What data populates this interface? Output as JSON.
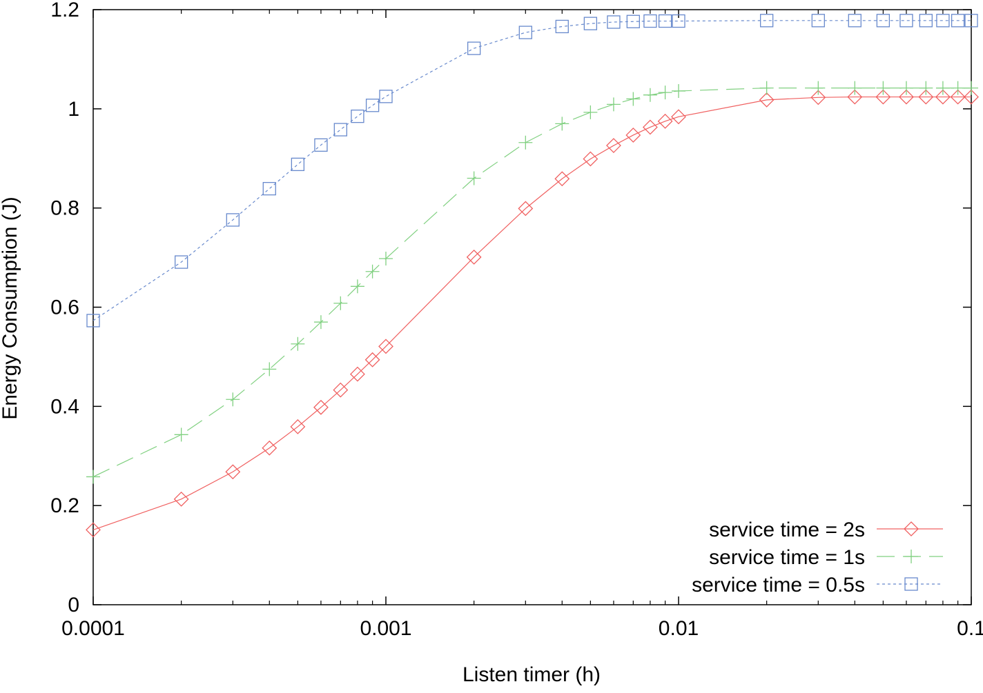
{
  "chart_data": {
    "type": "line",
    "xlabel": "Listen timer (h)",
    "ylabel": "Energy Consumption (J)",
    "xscale": "log",
    "xlim": [
      0.0001,
      0.1
    ],
    "ylim": [
      0,
      1.2
    ],
    "xticks": [
      {
        "value": 0.0001,
        "label": "0.0001"
      },
      {
        "value": 0.001,
        "label": "0.001"
      },
      {
        "value": 0.01,
        "label": "0.01"
      },
      {
        "value": 0.1,
        "label": "0.1"
      }
    ],
    "yticks": [
      {
        "value": 0,
        "label": "0"
      },
      {
        "value": 0.2,
        "label": "0.2"
      },
      {
        "value": 0.4,
        "label": "0.4"
      },
      {
        "value": 0.6,
        "label": "0.6"
      },
      {
        "value": 0.8,
        "label": "0.8"
      },
      {
        "value": 1.0,
        "label": "1"
      },
      {
        "value": 1.2,
        "label": "1.2"
      }
    ],
    "grid": false,
    "legend_position": "bottom-right",
    "x": [
      0.0001,
      0.0002,
      0.0003,
      0.0004,
      0.0005,
      0.0006,
      0.0007,
      0.0008,
      0.0009,
      0.001,
      0.002,
      0.003,
      0.004,
      0.005,
      0.006,
      0.007,
      0.008,
      0.009,
      0.01,
      0.02,
      0.03,
      0.04,
      0.05,
      0.06,
      0.07,
      0.08,
      0.09,
      0.1
    ],
    "series": [
      {
        "name": "service time = 2s",
        "color": "#f06060",
        "marker": "diamond",
        "dash": "",
        "values": [
          0.151,
          0.213,
          0.268,
          0.316,
          0.359,
          0.398,
          0.433,
          0.465,
          0.494,
          0.521,
          0.701,
          0.799,
          0.859,
          0.899,
          0.926,
          0.947,
          0.963,
          0.975,
          0.984,
          1.018,
          1.023,
          1.024,
          1.024,
          1.024,
          1.024,
          1.024,
          1.024,
          1.024
        ]
      },
      {
        "name": "service time = 1s",
        "color": "#80d080",
        "marker": "plus",
        "dash": "26,12",
        "values": [
          0.258,
          0.343,
          0.414,
          0.475,
          0.526,
          0.57,
          0.608,
          0.642,
          0.672,
          0.698,
          0.86,
          0.932,
          0.97,
          0.993,
          1.009,
          1.02,
          1.028,
          1.033,
          1.036,
          1.042,
          1.042,
          1.042,
          1.042,
          1.042,
          1.042,
          1.042,
          1.042,
          1.042
        ]
      },
      {
        "name": "service time = 0.5s",
        "color": "#6688cc",
        "marker": "square",
        "dash": "4,4",
        "values": [
          0.573,
          0.691,
          0.776,
          0.839,
          0.888,
          0.927,
          0.958,
          0.985,
          1.007,
          1.025,
          1.122,
          1.154,
          1.166,
          1.172,
          1.175,
          1.176,
          1.177,
          1.177,
          1.177,
          1.178,
          1.178,
          1.178,
          1.178,
          1.178,
          1.178,
          1.178,
          1.178,
          1.178
        ]
      }
    ]
  }
}
